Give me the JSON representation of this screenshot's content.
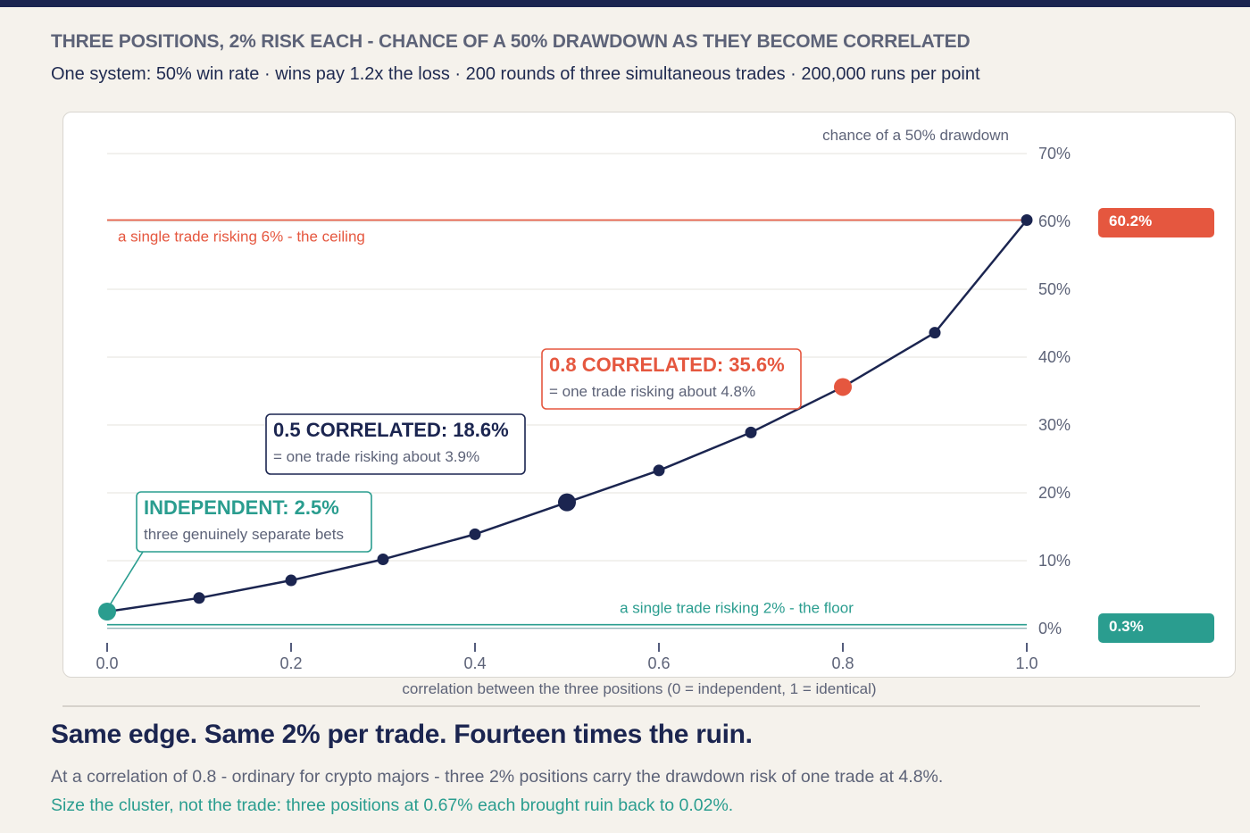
{
  "header": {
    "title": "THREE POSITIONS, 2% RISK EACH - CHANCE OF A 50% DRAWDOWN AS THEY BECOME CORRELATED",
    "subtitle": "One system: 50% win rate  ·  wins pay 1.2x the loss  ·  200 rounds of three simultaneous trades  ·  200,000 runs per point"
  },
  "colors": {
    "navy": "#1b2550",
    "red": "#e5573f",
    "teal": "#2a9d8f",
    "grid": "#e6e3de",
    "muted": "#5d6378",
    "background": "#f5f2ec"
  },
  "chart_data": {
    "type": "line",
    "ylabel": "chance of a 50% drawdown",
    "xlabel": "correlation between the three positions (0 = independent, 1 = identical)",
    "xlim": [
      0,
      1
    ],
    "ylim": [
      0,
      70
    ],
    "x_ticks": [
      "0.0",
      "0.2",
      "0.4",
      "0.6",
      "0.8",
      "1.0"
    ],
    "y_ticks": [
      "0%",
      "10%",
      "20%",
      "30%",
      "40%",
      "50%",
      "60%",
      "70%"
    ],
    "grid": true,
    "series": [
      {
        "x": [
          0.0,
          0.1,
          0.2,
          0.3,
          0.4,
          0.5,
          0.6,
          0.7,
          0.8,
          0.9,
          1.0
        ],
        "y": [
          2.5,
          4.5,
          7.1,
          10.2,
          13.9,
          18.6,
          23.3,
          28.9,
          35.6,
          43.6,
          60.2
        ]
      }
    ],
    "reference_lines": [
      {
        "label": "a single trade risking 6% - the ceiling",
        "value": 60.2,
        "badge": "60.2%",
        "color": "#e5573f"
      },
      {
        "label": "a single trade risking 2% - the floor",
        "value": 0.3,
        "badge": "0.3%",
        "color": "#2a9d8f"
      }
    ],
    "annotations": [
      {
        "x": 0.0,
        "y": 2.5,
        "title": "INDEPENDENT: 2.5%",
        "subtitle": "three genuinely separate bets",
        "color": "#2a9d8f"
      },
      {
        "x": 0.5,
        "y": 18.6,
        "title": "0.5 CORRELATED: 18.6%",
        "subtitle": "= one trade risking about 3.9%",
        "color": "#1b2550"
      },
      {
        "x": 0.8,
        "y": 35.6,
        "title": "0.8 CORRELATED: 35.6%",
        "subtitle": "= one trade risking about 4.8%",
        "color": "#e5573f"
      }
    ]
  },
  "footer": {
    "headline": "Same edge. Same 2% per trade. Fourteen times the ruin.",
    "body": "At a correlation of 0.8 - ordinary for crypto majors - three 2% positions carry the drawdown risk of one trade at 4.8%.",
    "takeaway": "Size the cluster, not the trade: three positions at 0.67% each brought ruin back to 0.02%."
  }
}
